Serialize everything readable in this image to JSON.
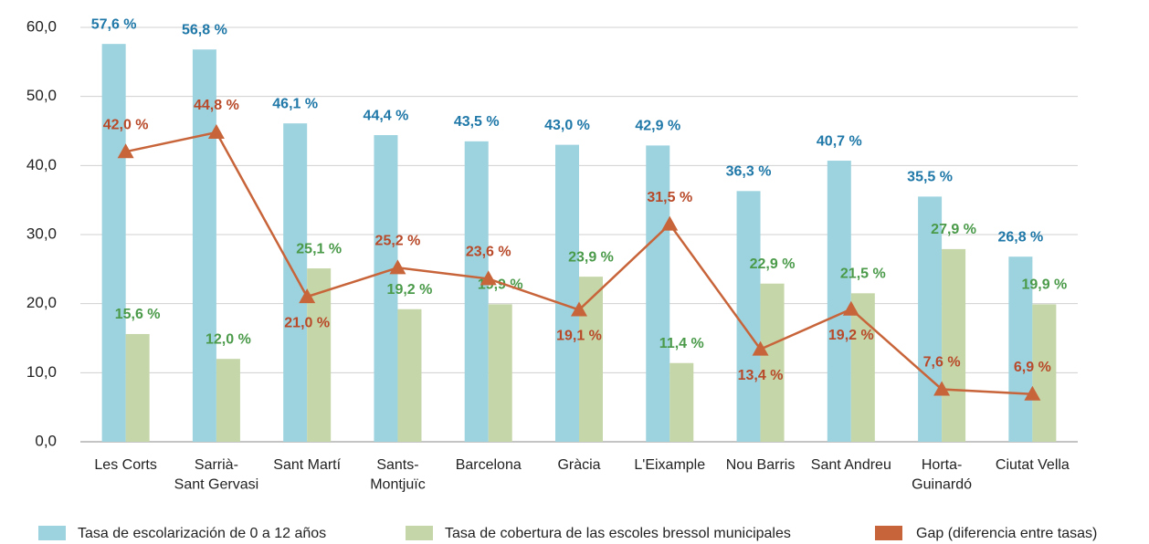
{
  "chart_data": {
    "type": "bar",
    "categories": [
      "Les Corts",
      "Sarrià-\nSant Gervasi",
      "Sant Martí",
      "Sants-\nMontjuïc",
      "Barcelona",
      "Gràcia",
      "L'Eixample",
      "Nou Barris",
      "Sant Andreu",
      "Horta-\nGuinardó",
      "Ciutat Vella"
    ],
    "series": [
      {
        "name": "Tasa de escolarización de 0 a 12 años",
        "type": "bar",
        "color": "#9dd3df",
        "label_color": "#1f78a8",
        "values": [
          57.6,
          56.8,
          46.1,
          44.4,
          43.5,
          43.0,
          42.9,
          36.3,
          40.7,
          35.5,
          26.8
        ],
        "value_labels": [
          "57,6 %",
          "56,8 %",
          "46,1 %",
          "44,4 %",
          "43,5 %",
          "43,0 %",
          "42,9 %",
          "36,3 %",
          "40,7 %",
          "35,5 %",
          "26,8 %"
        ]
      },
      {
        "name": "Tasa de cobertura de las escoles bressol municipales",
        "type": "bar",
        "color": "#c5d6a8",
        "label_color": "#4a9a4a",
        "values": [
          15.6,
          12.0,
          25.1,
          19.2,
          19.9,
          23.9,
          11.4,
          22.9,
          21.5,
          27.9,
          19.9
        ],
        "value_labels": [
          "15,6 %",
          "12,0 %",
          "25,1 %",
          "19,2 %",
          "19,9 %",
          "23,9 %",
          "11,4 %",
          "22,9 %",
          "21,5 %",
          "27,9 %",
          "19,9 %"
        ]
      },
      {
        "name": "Gap (diferencia entre tasas)",
        "type": "line",
        "color": "#c8643a",
        "label_color": "#b84a2a",
        "values": [
          42.0,
          44.8,
          21.0,
          25.2,
          23.6,
          19.1,
          31.5,
          13.4,
          19.2,
          7.6,
          6.9
        ],
        "value_labels": [
          "42,0 %",
          "44,8 %",
          "21,0 %",
          "25,2 %",
          "23,6 %",
          "19,1 %",
          "31,5 %",
          "13,4 %",
          "19,2 %",
          "7,6 %",
          "6,9 %"
        ]
      }
    ],
    "ylim": [
      0,
      60
    ],
    "yticks": [
      {
        "value": 0,
        "label": "0,0"
      },
      {
        "value": 10,
        "label": "10,0"
      },
      {
        "value": 20,
        "label": "20,0"
      },
      {
        "value": 30,
        "label": "30,0"
      },
      {
        "value": 40,
        "label": "40,0"
      },
      {
        "value": 50,
        "label": "50,0"
      },
      {
        "value": 60,
        "label": "60,0"
      }
    ],
    "grid": true,
    "legend": "bottom"
  }
}
